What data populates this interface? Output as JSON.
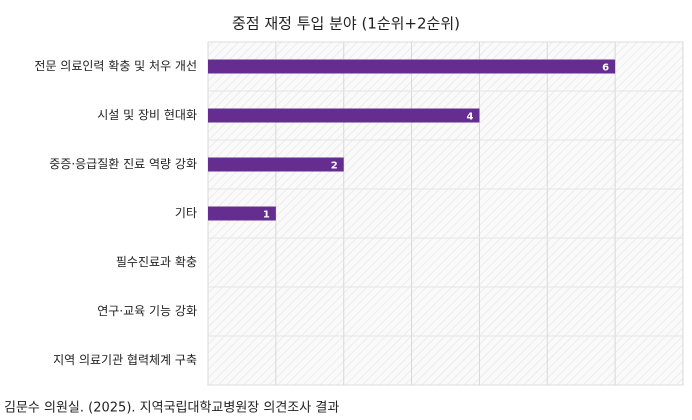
{
  "chart_data": {
    "type": "hbar",
    "title": "중점 재정 투입 분야 (1순위+2순위)",
    "categories": [
      "전문 의료인력 확충 및 처우 개선",
      "시설 및 장비 현대화",
      "중증·응급질환 진료 역량 강화",
      "기타",
      "필수진료과 확충",
      "연구·교육 기능 강화",
      "지역 의료기관 협력체계 구축"
    ],
    "values": [
      6,
      4,
      2,
      1,
      0,
      0,
      0
    ],
    "color": "#662d91",
    "xlim": [
      0,
      7
    ],
    "xticks": [
      0,
      1,
      2,
      3,
      4,
      5,
      6,
      7
    ],
    "grid": true,
    "source": "김문수 의원실. (2025). 지역국립대학교병원장 의견조사 결과"
  }
}
